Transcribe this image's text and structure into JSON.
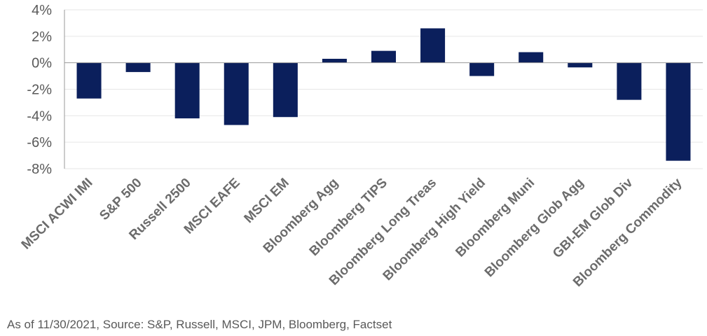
{
  "chart_data": {
    "type": "bar",
    "title": "",
    "xlabel": "",
    "ylabel": "",
    "categories": [
      "MSCI ACWI IMI",
      "S&P 500",
      "Russell 2500",
      "MSCI EAFE",
      "MSCI EM",
      "Bloomberg Agg",
      "Bloomberg TIPS",
      "Bloomberg Long Treas",
      "Bloomberg High Yield",
      "Bloomberg Muni",
      "Bloomberg Glob Agg",
      "GBI-EM Glob Div",
      "Bloomberg Commodity"
    ],
    "values": [
      -2.7,
      -0.7,
      -4.2,
      -4.7,
      -4.1,
      0.3,
      0.9,
      2.6,
      -1.0,
      0.8,
      -0.35,
      -2.8,
      -7.4
    ],
    "y_ticks": [
      "4%",
      "2%",
      "0%",
      "-2%",
      "-4%",
      "-6%",
      "-8%"
    ],
    "y_tick_values": [
      4,
      2,
      0,
      -2,
      -4,
      -6,
      -8
    ],
    "ylim": [
      -8,
      4
    ],
    "grid": true,
    "legend": "none",
    "colors": {
      "bar": "#0b1f5c",
      "grid": "#e6e6e6",
      "axis": "#9a9a9a"
    }
  },
  "footnote": "As of 11/30/2021, Source: S&P, Russell, MSCI, JPM, Bloomberg, Factset"
}
